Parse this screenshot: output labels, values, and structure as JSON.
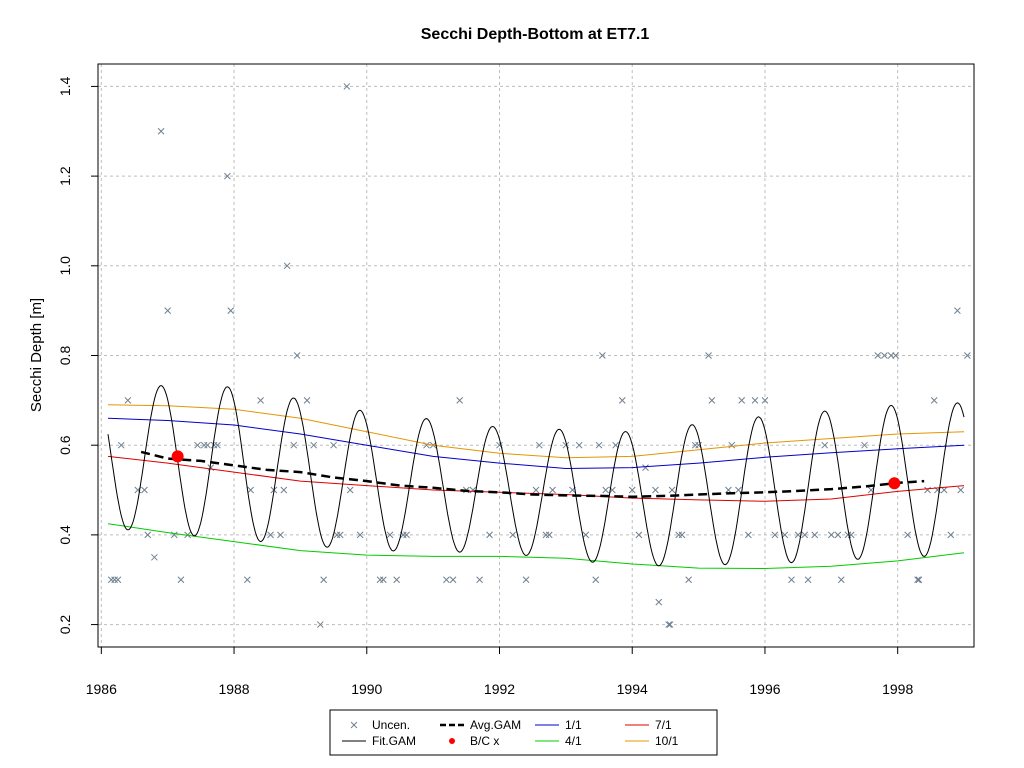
{
  "chart_data": {
    "type": "scatter",
    "title": "Secchi Depth-Bottom at ET7.1",
    "xlabel": "",
    "ylabel": "Secchi Depth [m]",
    "xlim": [
      1985.95,
      1999.15
    ],
    "ylim": [
      0.15,
      1.45
    ],
    "xticks": [
      "1986",
      "1988",
      "1990",
      "1992",
      "1994",
      "1996",
      "1998"
    ],
    "yticks": [
      "0.2",
      "0.4",
      "0.6",
      "0.8",
      "1.0",
      "1.2",
      "1.4"
    ],
    "grid": true,
    "legend_position": "bottom",
    "legend": [
      {
        "label": "Uncen.",
        "kind": "x-marker",
        "color": "#708090"
      },
      {
        "label": "Fit.GAM",
        "kind": "line",
        "color": "#000000"
      },
      {
        "label": "Avg.GAM",
        "kind": "dashed-line",
        "color": "#000000"
      },
      {
        "label": "B/C x",
        "kind": "dot",
        "color": "#ff0000"
      },
      {
        "label": "1/1",
        "kind": "line",
        "color": "#0000cc"
      },
      {
        "label": "4/1",
        "kind": "line",
        "color": "#00cc00"
      },
      {
        "label": "7/1",
        "kind": "line",
        "color": "#dd0000"
      },
      {
        "label": "10/1",
        "kind": "line",
        "color": "#e69500"
      }
    ],
    "uncensored_points": [
      [
        1986.15,
        0.3
      ],
      [
        1986.2,
        0.3
      ],
      [
        1986.25,
        0.3
      ],
      [
        1986.3,
        0.6
      ],
      [
        1986.4,
        0.7
      ],
      [
        1986.55,
        0.5
      ],
      [
        1986.65,
        0.5
      ],
      [
        1986.7,
        0.4
      ],
      [
        1986.8,
        0.35
      ],
      [
        1986.9,
        1.3
      ],
      [
        1987.0,
        0.9
      ],
      [
        1987.1,
        0.4
      ],
      [
        1987.2,
        0.3
      ],
      [
        1987.3,
        0.4
      ],
      [
        1987.45,
        0.6
      ],
      [
        1987.55,
        0.6
      ],
      [
        1987.6,
        0.6
      ],
      [
        1987.65,
        0.55
      ],
      [
        1987.7,
        0.6
      ],
      [
        1987.75,
        0.6
      ],
      [
        1987.9,
        1.2
      ],
      [
        1987.95,
        0.9
      ],
      [
        1988.2,
        0.3
      ],
      [
        1988.25,
        0.5
      ],
      [
        1988.4,
        0.7
      ],
      [
        1988.55,
        0.4
      ],
      [
        1988.6,
        0.5
      ],
      [
        1988.7,
        0.4
      ],
      [
        1988.75,
        0.5
      ],
      [
        1988.8,
        1.0
      ],
      [
        1988.9,
        0.6
      ],
      [
        1988.95,
        0.8
      ],
      [
        1989.1,
        0.7
      ],
      [
        1989.2,
        0.6
      ],
      [
        1989.3,
        0.2
      ],
      [
        1989.35,
        0.3
      ],
      [
        1989.5,
        0.6
      ],
      [
        1989.55,
        0.4
      ],
      [
        1989.6,
        0.4
      ],
      [
        1989.7,
        1.4
      ],
      [
        1989.75,
        0.5
      ],
      [
        1989.9,
        0.4
      ],
      [
        1990.2,
        0.3
      ],
      [
        1990.25,
        0.3
      ],
      [
        1990.35,
        0.4
      ],
      [
        1990.45,
        0.3
      ],
      [
        1990.55,
        0.4
      ],
      [
        1990.6,
        0.4
      ],
      [
        1990.9,
        0.6
      ],
      [
        1991.0,
        0.6
      ],
      [
        1991.2,
        0.3
      ],
      [
        1991.3,
        0.3
      ],
      [
        1991.4,
        0.7
      ],
      [
        1991.5,
        0.5
      ],
      [
        1991.6,
        0.5
      ],
      [
        1991.7,
        0.3
      ],
      [
        1991.85,
        0.4
      ],
      [
        1992.0,
        0.6
      ],
      [
        1992.2,
        0.4
      ],
      [
        1992.4,
        0.3
      ],
      [
        1992.55,
        0.5
      ],
      [
        1992.6,
        0.6
      ],
      [
        1992.7,
        0.4
      ],
      [
        1992.75,
        0.4
      ],
      [
        1992.8,
        0.5
      ],
      [
        1993.0,
        0.6
      ],
      [
        1993.1,
        0.5
      ],
      [
        1993.2,
        0.6
      ],
      [
        1993.3,
        0.4
      ],
      [
        1993.45,
        0.3
      ],
      [
        1993.5,
        0.6
      ],
      [
        1993.55,
        0.8
      ],
      [
        1993.6,
        0.5
      ],
      [
        1993.7,
        0.5
      ],
      [
        1993.75,
        0.6
      ],
      [
        1993.85,
        0.7
      ],
      [
        1994.0,
        0.5
      ],
      [
        1994.1,
        0.4
      ],
      [
        1994.2,
        0.55
      ],
      [
        1994.35,
        0.5
      ],
      [
        1994.4,
        0.25
      ],
      [
        1994.55,
        0.2
      ],
      [
        1994.57,
        0.2
      ],
      [
        1994.6,
        0.5
      ],
      [
        1994.7,
        0.4
      ],
      [
        1994.75,
        0.4
      ],
      [
        1994.85,
        0.3
      ],
      [
        1994.95,
        0.6
      ],
      [
        1995.0,
        0.6
      ],
      [
        1995.15,
        0.8
      ],
      [
        1995.2,
        0.7
      ],
      [
        1995.45,
        0.5
      ],
      [
        1995.5,
        0.6
      ],
      [
        1995.6,
        0.5
      ],
      [
        1995.65,
        0.7
      ],
      [
        1995.75,
        0.4
      ],
      [
        1995.85,
        0.7
      ],
      [
        1996.0,
        0.7
      ],
      [
        1996.15,
        0.4
      ],
      [
        1996.3,
        0.4
      ],
      [
        1996.4,
        0.3
      ],
      [
        1996.5,
        0.4
      ],
      [
        1996.6,
        0.4
      ],
      [
        1996.65,
        0.3
      ],
      [
        1996.75,
        0.4
      ],
      [
        1996.9,
        0.6
      ],
      [
        1997.0,
        0.4
      ],
      [
        1997.1,
        0.4
      ],
      [
        1997.15,
        0.3
      ],
      [
        1997.25,
        0.4
      ],
      [
        1997.3,
        0.4
      ],
      [
        1997.5,
        0.6
      ],
      [
        1997.6,
        0.5
      ],
      [
        1997.7,
        0.8
      ],
      [
        1997.8,
        0.8
      ],
      [
        1997.9,
        0.8
      ],
      [
        1997.97,
        0.8
      ],
      [
        1998.15,
        0.4
      ],
      [
        1998.3,
        0.3
      ],
      [
        1998.32,
        0.3
      ],
      [
        1998.45,
        0.5
      ],
      [
        1998.55,
        0.7
      ],
      [
        1998.6,
        0.5
      ],
      [
        1998.7,
        0.5
      ],
      [
        1998.8,
        0.4
      ],
      [
        1998.9,
        0.9
      ],
      [
        1998.95,
        0.5
      ],
      [
        1999.05,
        0.8
      ]
    ],
    "fit_gam": {
      "start": 1986.1,
      "end": 1999.0,
      "mean_trend": [
        [
          1986.1,
          0.575
        ],
        [
          1988.0,
          0.56
        ],
        [
          1990.0,
          0.52
        ],
        [
          1992.0,
          0.5
        ],
        [
          1994.0,
          0.48
        ],
        [
          1996.0,
          0.5
        ],
        [
          1998.0,
          0.52
        ],
        [
          1999.0,
          0.525
        ]
      ],
      "amplitude": [
        [
          1986.1,
          0.16
        ],
        [
          1988.0,
          0.17
        ],
        [
          1990.0,
          0.155
        ],
        [
          1992.0,
          0.14
        ],
        [
          1994.0,
          0.15
        ],
        [
          1996.0,
          0.165
        ],
        [
          1998.0,
          0.17
        ],
        [
          1999.0,
          0.17
        ]
      ],
      "peak_phase": 0.9
    },
    "avg_gam": [
      [
        1986.6,
        0.585
      ],
      [
        1987.0,
        0.57
      ],
      [
        1987.5,
        0.565
      ],
      [
        1988.0,
        0.555
      ],
      [
        1988.5,
        0.545
      ],
      [
        1989.0,
        0.54
      ],
      [
        1989.5,
        0.528
      ],
      [
        1990.0,
        0.52
      ],
      [
        1990.5,
        0.51
      ],
      [
        1991.0,
        0.505
      ],
      [
        1991.5,
        0.498
      ],
      [
        1992.0,
        0.495
      ],
      [
        1992.5,
        0.49
      ],
      [
        1993.0,
        0.488
      ],
      [
        1993.5,
        0.487
      ],
      [
        1994.0,
        0.485
      ],
      [
        1994.5,
        0.487
      ],
      [
        1995.0,
        0.49
      ],
      [
        1995.5,
        0.493
      ],
      [
        1996.0,
        0.495
      ],
      [
        1996.5,
        0.498
      ],
      [
        1997.0,
        0.502
      ],
      [
        1997.5,
        0.508
      ],
      [
        1998.0,
        0.516
      ],
      [
        1998.4,
        0.52
      ]
    ],
    "seasonal_lines": {
      "1/1": [
        [
          1986.1,
          0.66
        ],
        [
          1987.0,
          0.655
        ],
        [
          1988.0,
          0.645
        ],
        [
          1989.0,
          0.625
        ],
        [
          1990.0,
          0.6
        ],
        [
          1991.0,
          0.575
        ],
        [
          1992.0,
          0.56
        ],
        [
          1993.0,
          0.548
        ],
        [
          1994.0,
          0.55
        ],
        [
          1995.0,
          0.56
        ],
        [
          1996.0,
          0.573
        ],
        [
          1997.0,
          0.583
        ],
        [
          1998.0,
          0.592
        ],
        [
          1999.0,
          0.6
        ]
      ],
      "4/1": [
        [
          1986.1,
          0.425
        ],
        [
          1987.0,
          0.405
        ],
        [
          1988.0,
          0.385
        ],
        [
          1989.0,
          0.365
        ],
        [
          1990.0,
          0.355
        ],
        [
          1991.0,
          0.352
        ],
        [
          1992.0,
          0.352
        ],
        [
          1993.0,
          0.348
        ],
        [
          1994.0,
          0.335
        ],
        [
          1995.0,
          0.326
        ],
        [
          1996.0,
          0.325
        ],
        [
          1997.0,
          0.33
        ],
        [
          1998.0,
          0.342
        ],
        [
          1999.0,
          0.36
        ]
      ],
      "7/1": [
        [
          1986.1,
          0.575
        ],
        [
          1987.0,
          0.56
        ],
        [
          1988.0,
          0.54
        ],
        [
          1989.0,
          0.52
        ],
        [
          1990.0,
          0.51
        ],
        [
          1991.0,
          0.5
        ],
        [
          1992.0,
          0.495
        ],
        [
          1993.0,
          0.49
        ],
        [
          1994.0,
          0.482
        ],
        [
          1995.0,
          0.478
        ],
        [
          1996.0,
          0.475
        ],
        [
          1997.0,
          0.48
        ],
        [
          1998.0,
          0.497
        ],
        [
          1999.0,
          0.51
        ]
      ],
      "10/1": [
        [
          1986.1,
          0.69
        ],
        [
          1987.0,
          0.688
        ],
        [
          1988.0,
          0.68
        ],
        [
          1989.0,
          0.66
        ],
        [
          1990.0,
          0.63
        ],
        [
          1991.0,
          0.6
        ],
        [
          1992.0,
          0.582
        ],
        [
          1993.0,
          0.572
        ],
        [
          1994.0,
          0.575
        ],
        [
          1995.0,
          0.59
        ],
        [
          1996.0,
          0.605
        ],
        [
          1997.0,
          0.615
        ],
        [
          1998.0,
          0.625
        ],
        [
          1999.0,
          0.63
        ]
      ]
    },
    "bc_points": [
      [
        1987.15,
        0.575
      ],
      [
        1997.95,
        0.515
      ]
    ]
  }
}
